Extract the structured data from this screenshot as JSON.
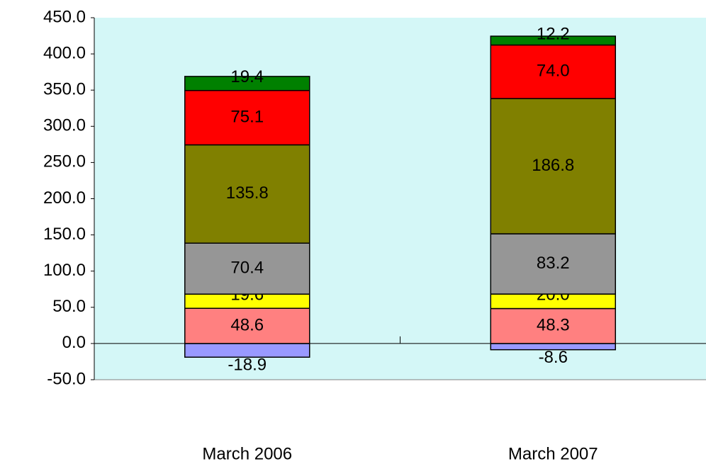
{
  "chart_data": {
    "type": "stacked_bar",
    "categories": [
      "March 2006",
      "March 2007"
    ],
    "series": [
      {
        "color": "#9999ff",
        "values": [
          -18.9,
          -8.6
        ]
      },
      {
        "color": "#ff8080",
        "values": [
          48.6,
          48.3
        ]
      },
      {
        "color": "#ffff00",
        "values": [
          19.6,
          20.0
        ],
        "value_labels": [
          "19.6",
          "20.0"
        ]
      },
      {
        "color": "#969696",
        "values": [
          70.4,
          83.2
        ]
      },
      {
        "color": "#808000",
        "values": [
          135.8,
          186.8
        ]
      },
      {
        "color": "#ff0000",
        "values": [
          75.1,
          74.0
        ],
        "value_labels": [
          "75.1",
          "74.0"
        ]
      },
      {
        "color": "#008000",
        "values": [
          19.4,
          12.2
        ]
      }
    ],
    "ylim": [
      -50,
      450
    ],
    "yticks": [
      {
        "value": -50,
        "label": "-50.0"
      },
      {
        "value": 0,
        "label": "0.0"
      },
      {
        "value": 50,
        "label": "50.0"
      },
      {
        "value": 100,
        "label": "100.0"
      },
      {
        "value": 150,
        "label": "150.0"
      },
      {
        "value": 200,
        "label": "200.0"
      },
      {
        "value": 250,
        "label": "250.0"
      },
      {
        "value": 300,
        "label": "300.0"
      },
      {
        "value": 350,
        "label": "350.0"
      },
      {
        "value": 400,
        "label": "400.0"
      },
      {
        "value": 450,
        "label": "450.0"
      }
    ],
    "plot_background": "#d4f7f7"
  }
}
